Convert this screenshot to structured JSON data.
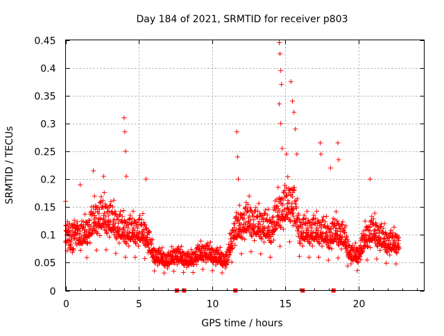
{
  "chart_data": {
    "type": "scatter",
    "title": "Day 184 of 2021, SRMTID for receiver p803",
    "xlabel": "GPS time / hours",
    "ylabel": "SRMTID / TECUs",
    "xlim": [
      0,
      24.5
    ],
    "ylim": [
      0,
      0.45
    ],
    "xticks": [
      0,
      5,
      10,
      15,
      20
    ],
    "yticks": [
      0,
      0.05,
      0.1,
      0.15,
      0.2,
      0.25,
      0.3,
      0.35,
      0.4,
      0.45
    ],
    "xtick_labels": [
      "0",
      "5",
      "10",
      "15",
      "20"
    ],
    "ytick_labels": [
      "0",
      "0.05",
      "0.1",
      "0.15",
      "0.2",
      "0.25",
      "0.3",
      "0.35",
      "0.4",
      "0.45"
    ],
    "grid": true,
    "marker": "+",
    "color": "#ff0000",
    "series": [
      {
        "name": "SRMTID",
        "description_level_by_hour": [
          [
            0,
            0.09
          ],
          [
            0.5,
            0.1
          ],
          [
            1,
            0.09
          ],
          [
            1.5,
            0.1
          ],
          [
            2,
            0.12
          ],
          [
            2.5,
            0.125
          ],
          [
            3,
            0.12
          ],
          [
            3.5,
            0.11
          ],
          [
            4,
            0.1
          ],
          [
            4.5,
            0.1
          ],
          [
            5,
            0.1
          ],
          [
            5.5,
            0.095
          ],
          [
            6,
            0.06
          ],
          [
            6.5,
            0.055
          ],
          [
            7,
            0.05
          ],
          [
            7.5,
            0.06
          ],
          [
            8,
            0.055
          ],
          [
            8.5,
            0.05
          ],
          [
            9,
            0.06
          ],
          [
            9.5,
            0.065
          ],
          [
            10,
            0.06
          ],
          [
            10.5,
            0.055
          ],
          [
            11,
            0.05
          ],
          [
            11.5,
            0.1
          ],
          [
            12,
            0.11
          ],
          [
            12.5,
            0.12
          ],
          [
            13,
            0.11
          ],
          [
            13.5,
            0.11
          ],
          [
            14,
            0.1
          ],
          [
            14.5,
            0.13
          ],
          [
            15,
            0.14
          ],
          [
            15.5,
            0.15
          ],
          [
            16,
            0.1
          ],
          [
            16.5,
            0.1
          ],
          [
            17,
            0.1
          ],
          [
            17.5,
            0.1
          ],
          [
            18,
            0.09
          ],
          [
            18.5,
            0.1
          ],
          [
            19,
            0.09
          ],
          [
            19.5,
            0.06
          ],
          [
            20,
            0.06
          ],
          [
            20.5,
            0.09
          ],
          [
            21,
            0.1
          ],
          [
            21.5,
            0.09
          ],
          [
            22,
            0.08
          ],
          [
            22.5,
            0.08
          ]
        ],
        "notable_points": [
          [
            0,
            0.16
          ],
          [
            1.0,
            0.19
          ],
          [
            1.9,
            0.215
          ],
          [
            2.6,
            0.205
          ],
          [
            4.0,
            0.31
          ],
          [
            4.05,
            0.285
          ],
          [
            4.1,
            0.25
          ],
          [
            4.15,
            0.205
          ],
          [
            5.5,
            0.2
          ],
          [
            11.7,
            0.285
          ],
          [
            11.75,
            0.24
          ],
          [
            11.8,
            0.2
          ],
          [
            14.6,
            0.445
          ],
          [
            14.65,
            0.425
          ],
          [
            14.7,
            0.395
          ],
          [
            14.75,
            0.37
          ],
          [
            14.6,
            0.335
          ],
          [
            14.7,
            0.3
          ],
          [
            14.8,
            0.255
          ],
          [
            15.1,
            0.245
          ],
          [
            15.4,
            0.375
          ],
          [
            15.5,
            0.34
          ],
          [
            15.6,
            0.32
          ],
          [
            15.7,
            0.29
          ],
          [
            15.8,
            0.245
          ],
          [
            17.4,
            0.265
          ],
          [
            17.45,
            0.245
          ],
          [
            18.1,
            0.22
          ],
          [
            18.6,
            0.265
          ],
          [
            18.65,
            0.235
          ],
          [
            20.8,
            0.2
          ]
        ]
      }
    ],
    "x_axis_markers": [
      7.6,
      8.1,
      11.6,
      16.2,
      18.3
    ]
  }
}
